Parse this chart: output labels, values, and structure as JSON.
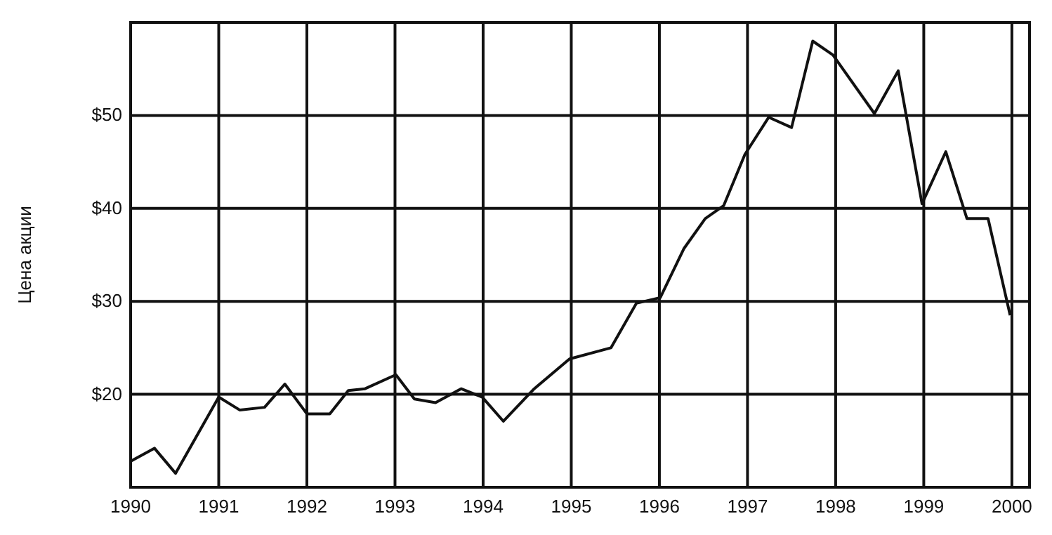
{
  "chart_data": {
    "type": "line",
    "ylabel": "Цена акции",
    "x": [
      1990.0,
      1990.27,
      1990.51,
      1991.0,
      1991.24,
      1991.52,
      1991.75,
      1992.0,
      1992.26,
      1992.47,
      1992.66,
      1993.01,
      1993.22,
      1993.46,
      1993.75,
      1993.99,
      1994.23,
      1994.58,
      1994.98,
      1995.45,
      1995.74,
      1996.01,
      1996.28,
      1996.52,
      1996.73,
      1996.97,
      1997.24,
      1997.5,
      1997.74,
      1997.97,
      1998.44,
      1998.71,
      1998.98,
      1999.25,
      1999.49,
      1999.73,
      1999.98
    ],
    "series": [
      {
        "color": "#111111",
        "values": [
          12.8,
          14.2,
          11.5,
          19.7,
          18.3,
          18.6,
          21.1,
          17.9,
          17.9,
          20.4,
          20.6,
          22.1,
          19.5,
          19.1,
          20.6,
          19.7,
          17.1,
          20.6,
          23.8,
          25,
          29.8,
          30.4,
          35.7,
          38.9,
          40.3,
          45.8,
          49.8,
          48.7,
          58,
          56.5,
          50.2,
          54.8,
          40.5,
          46.1,
          38.9,
          38.9,
          28.5
        ]
      }
    ],
    "xlim": [
      1990,
      2000.2
    ],
    "xticks": [
      1990,
      1991,
      1992,
      1993,
      1994,
      1995,
      1996,
      1997,
      1998,
      1999,
      2000
    ],
    "ylim": [
      10,
      60
    ],
    "yticks": [
      {
        "value": 20,
        "label": "$20"
      },
      {
        "value": 30,
        "label": "$30"
      },
      {
        "value": 40,
        "label": "$40"
      },
      {
        "value": 50,
        "label": "$50"
      }
    ],
    "grid": true,
    "marker": "none",
    "line_style": "solid"
  }
}
